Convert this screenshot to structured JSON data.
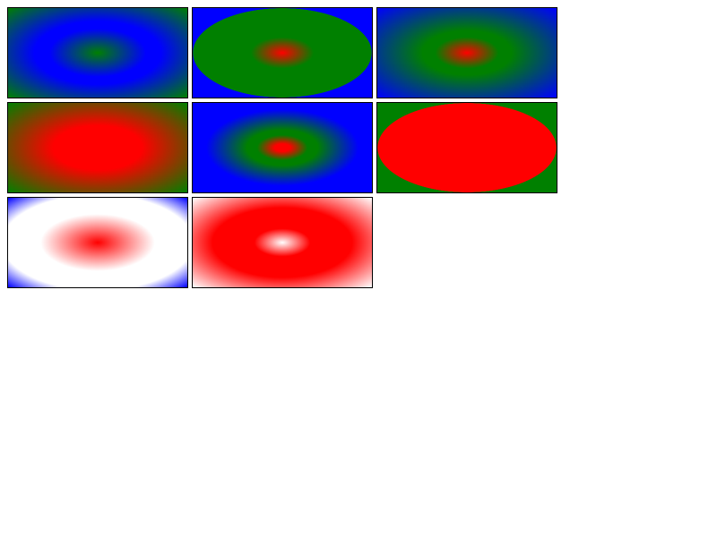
{
  "tiles": [
    {
      "name": "tile-1-green-blue-ellipse",
      "stops": [
        [
          "#008000",
          0
        ],
        [
          "#0000ff",
          55
        ],
        [
          "#008000",
          100
        ]
      ]
    },
    {
      "name": "tile-2-red-green-hard-edge",
      "stops": [
        [
          "#ff0000",
          0
        ],
        [
          "#008000",
          35
        ],
        [
          "#008000",
          99
        ],
        [
          "#0000ff",
          100
        ]
      ]
    },
    {
      "name": "tile-3-red-green-blue",
      "stops": [
        [
          "#ff0000",
          0
        ],
        [
          "#008000",
          40
        ],
        [
          "#0000ff",
          100
        ]
      ]
    },
    {
      "name": "tile-4-red-core-green-edge",
      "stops": [
        [
          "#ff0000",
          0
        ],
        [
          "#ff0000",
          45
        ],
        [
          "#008000",
          100
        ]
      ]
    },
    {
      "name": "tile-5-red-green-blue-tight",
      "stops": [
        [
          "#ff0000",
          0
        ],
        [
          "#ff0000",
          7
        ],
        [
          "#008000",
          35
        ],
        [
          "#0000ff",
          75
        ]
      ]
    },
    {
      "name": "tile-6-red-ellipse-green-bg",
      "stops": [
        [
          "#ff0000",
          0
        ],
        [
          "#ff0000",
          99
        ],
        [
          "#008000",
          100
        ]
      ]
    },
    {
      "name": "tile-7-red-white-blue",
      "stops": [
        [
          "#ff0000",
          0
        ],
        [
          "#ffffff",
          60
        ],
        [
          "#0000ff",
          100
        ]
      ]
    },
    {
      "name": "tile-8-white-red",
      "stops": [
        [
          "#ffffff",
          0
        ],
        [
          "#ff0000",
          35
        ],
        [
          "#ffffff",
          100
        ]
      ]
    }
  ]
}
